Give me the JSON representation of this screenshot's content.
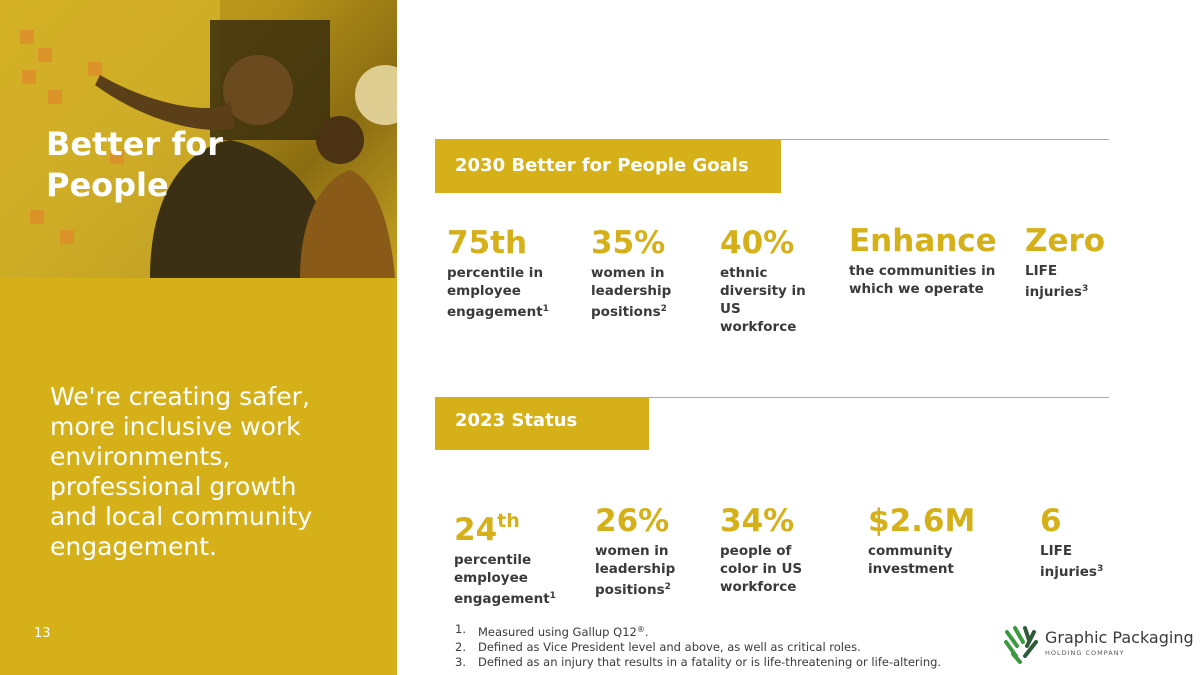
{
  "left": {
    "title": "Better for\nPeople",
    "body": "We're creating safer, more inclusive work environments, professional growth and local community engagement.",
    "page_number": "13"
  },
  "goals": {
    "label": "2030 Better for People Goals",
    "items": [
      {
        "value": "75th",
        "desc": "percentile in employee engagement",
        "note": "1"
      },
      {
        "value": "35%",
        "desc": "women in leadership positions",
        "note": "2"
      },
      {
        "value": "40%",
        "desc": "ethnic diversity in US workforce",
        "note": ""
      },
      {
        "value": "Enhance",
        "desc": "the communities in which we operate",
        "note": ""
      },
      {
        "value": "Zero",
        "desc": "LIFE injuries",
        "note": "3"
      }
    ]
  },
  "status": {
    "label": "2023 Status",
    "items": [
      {
        "value": "24",
        "value_sup": "th",
        "desc": "percentile employee engagement",
        "note": "1"
      },
      {
        "value": "26%",
        "value_sup": "",
        "desc": "women in leadership positions",
        "note": "2"
      },
      {
        "value": "34%",
        "value_sup": "",
        "desc": "people of color in US workforce",
        "note": ""
      },
      {
        "value": "$2.6M",
        "value_sup": "",
        "desc": "community investment",
        "note": ""
      },
      {
        "value": "6",
        "value_sup": "",
        "desc": "LIFE injuries",
        "note": "3"
      }
    ]
  },
  "footnotes": [
    {
      "num": "1.",
      "text": "Measured using Gallup Q12",
      "sup": "®",
      "end": "."
    },
    {
      "num": "2.",
      "text": "Defined as Vice President level and above, as well as critical roles.",
      "sup": "",
      "end": ""
    },
    {
      "num": "3.",
      "text": "Defined as an injury that results in a fatality or is life-threatening or life-altering.",
      "sup": "",
      "end": ""
    }
  ],
  "logo": {
    "name": "Graphic Packaging",
    "sub": "HOLDING COMPANY",
    "colors": {
      "green": "#3a9a3f",
      "dark": "#2f5b3a"
    }
  },
  "colors": {
    "accent": "#d5b018",
    "text": "#3a3a3a",
    "white": "#ffffff"
  }
}
